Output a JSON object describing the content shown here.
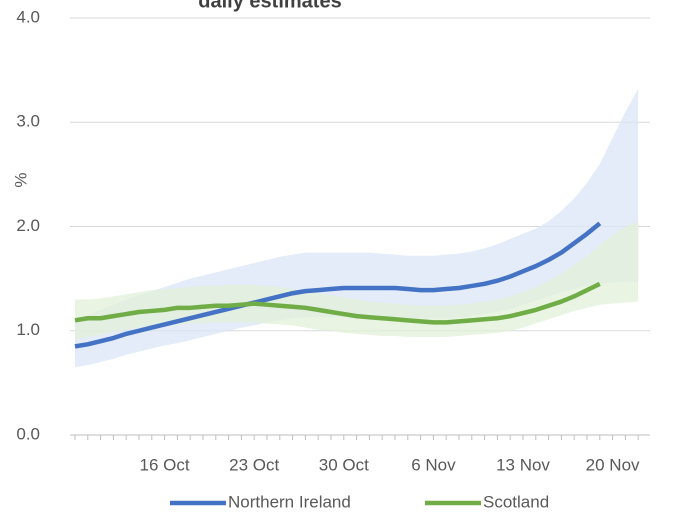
{
  "chart_data": {
    "type": "line",
    "title": "daily estimates",
    "y_label": "%",
    "categories": [
      null,
      null,
      null,
      null,
      null,
      null,
      null,
      "16 Oct",
      null,
      null,
      null,
      null,
      null,
      null,
      "23 Oct",
      null,
      null,
      null,
      null,
      null,
      null,
      "30 Oct",
      null,
      null,
      null,
      null,
      null,
      null,
      "6 Nov",
      null,
      null,
      null,
      null,
      null,
      null,
      "13 Nov",
      null,
      null,
      null,
      null,
      null,
      null,
      "20 Nov",
      null,
      null
    ],
    "ylim": [
      0,
      4
    ],
    "yticks": [
      {
        "value": 0,
        "label": "0.0"
      },
      {
        "value": 1,
        "label": "1.0"
      },
      {
        "value": 2,
        "label": "2.0"
      },
      {
        "value": 3,
        "label": "3.0"
      },
      {
        "value": 4,
        "label": "4.0"
      }
    ],
    "grid": true,
    "legend": "bottom",
    "series": [
      {
        "name": "Northern Ireland",
        "color": "#4472c4",
        "band_color": "#dae6f5",
        "values": [
          0.85,
          0.87,
          0.9,
          0.93,
          0.97,
          1.0,
          1.03,
          1.06,
          1.09,
          1.12,
          1.15,
          1.18,
          1.21,
          1.24,
          1.27,
          1.3,
          1.33,
          1.36,
          1.38,
          1.39,
          1.4,
          1.41,
          1.41,
          1.41,
          1.41,
          1.41,
          1.4,
          1.39,
          1.39,
          1.4,
          1.41,
          1.43,
          1.45,
          1.48,
          1.52,
          1.57,
          1.62,
          1.68,
          1.75,
          1.84,
          1.93,
          2.03,
          null,
          null,
          null
        ],
        "upper": [
          1.1,
          1.15,
          1.2,
          1.25,
          1.3,
          1.34,
          1.38,
          1.42,
          1.46,
          1.5,
          1.53,
          1.56,
          1.59,
          1.62,
          1.65,
          1.68,
          1.71,
          1.73,
          1.75,
          1.75,
          1.75,
          1.75,
          1.75,
          1.75,
          1.74,
          1.73,
          1.72,
          1.72,
          1.72,
          1.73,
          1.74,
          1.76,
          1.79,
          1.83,
          1.88,
          1.93,
          1.98,
          2.05,
          2.15,
          2.27,
          2.42,
          2.6,
          2.85,
          3.1,
          3.32
        ],
        "lower": [
          0.65,
          0.67,
          0.7,
          0.73,
          0.77,
          0.8,
          0.83,
          0.86,
          0.88,
          0.91,
          0.94,
          0.97,
          1.0,
          1.03,
          1.05,
          1.08,
          1.1,
          1.12,
          1.13,
          1.13,
          1.13,
          1.13,
          1.13,
          1.13,
          1.13,
          1.13,
          1.12,
          1.12,
          1.12,
          1.12,
          1.13,
          1.14,
          1.16,
          1.18,
          1.21,
          1.25,
          1.29,
          1.33,
          1.37,
          1.4,
          1.43,
          1.45,
          1.46,
          1.47,
          1.47
        ]
      },
      {
        "name": "Scotland",
        "color": "#70ad47",
        "band_color": "#e2f0d9",
        "values": [
          1.1,
          1.12,
          1.12,
          1.14,
          1.16,
          1.18,
          1.19,
          1.2,
          1.22,
          1.22,
          1.23,
          1.24,
          1.24,
          1.25,
          1.26,
          1.25,
          1.24,
          1.23,
          1.22,
          1.2,
          1.18,
          1.16,
          1.14,
          1.13,
          1.12,
          1.11,
          1.1,
          1.09,
          1.08,
          1.08,
          1.09,
          1.1,
          1.11,
          1.12,
          1.14,
          1.17,
          1.2,
          1.24,
          1.28,
          1.33,
          1.39,
          1.45,
          null,
          null,
          null
        ],
        "upper": [
          1.3,
          1.3,
          1.31,
          1.33,
          1.35,
          1.37,
          1.39,
          1.4,
          1.41,
          1.42,
          1.43,
          1.43,
          1.44,
          1.44,
          1.44,
          1.43,
          1.42,
          1.4,
          1.38,
          1.36,
          1.34,
          1.32,
          1.3,
          1.28,
          1.27,
          1.26,
          1.25,
          1.24,
          1.24,
          1.24,
          1.25,
          1.26,
          1.28,
          1.3,
          1.33,
          1.37,
          1.42,
          1.48,
          1.55,
          1.63,
          1.72,
          1.82,
          1.92,
          2.0,
          2.05
        ],
        "lower": [
          0.92,
          0.94,
          0.96,
          0.99,
          1.01,
          1.03,
          1.04,
          1.05,
          1.06,
          1.07,
          1.07,
          1.08,
          1.08,
          1.08,
          1.08,
          1.07,
          1.06,
          1.05,
          1.03,
          1.01,
          1.0,
          0.98,
          0.97,
          0.96,
          0.95,
          0.95,
          0.94,
          0.94,
          0.94,
          0.94,
          0.95,
          0.96,
          0.97,
          0.98,
          1.0,
          1.03,
          1.07,
          1.11,
          1.15,
          1.19,
          1.22,
          1.25,
          1.26,
          1.27,
          1.28
        ]
      }
    ]
  }
}
